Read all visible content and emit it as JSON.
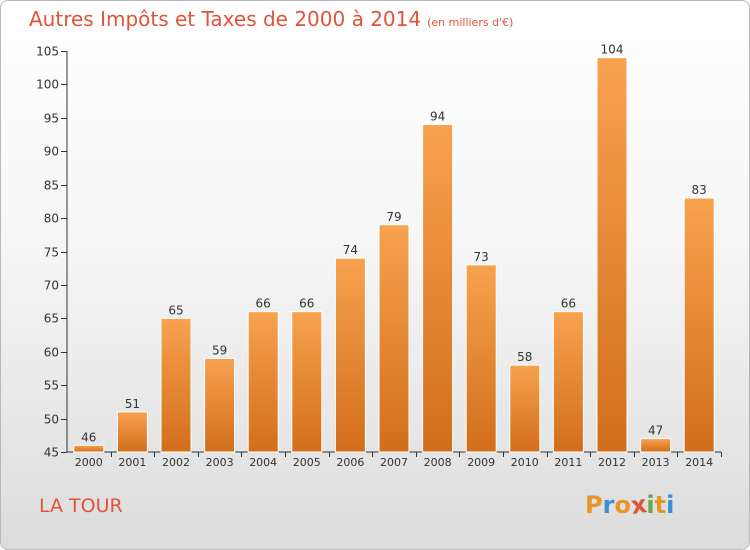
{
  "title": {
    "main": "Autres Impôts et Taxes de 2000 à 2014",
    "sub": "(en milliers d'€)"
  },
  "place_name": "LA TOUR",
  "logo": {
    "letters": [
      "P",
      "r",
      "o",
      "x",
      "i",
      "t",
      "i"
    ],
    "colors": [
      "#e8962a",
      "#3b8fd4",
      "#e8962a",
      "#e0543a",
      "#6aa84f",
      "#e8962a",
      "#3b8fd4"
    ]
  },
  "colors": {
    "accent": "#e0543a",
    "bar_light": "#f7a24f",
    "bar_dark": "#d26e1b"
  },
  "chart_data": {
    "type": "bar",
    "title": "Autres Impôts et Taxes de 2000 à 2014",
    "subtitle": "(en milliers d'€)",
    "categories": [
      "2000",
      "2001",
      "2002",
      "2003",
      "2004",
      "2005",
      "2006",
      "2007",
      "2008",
      "2009",
      "2010",
      "2011",
      "2012",
      "2013",
      "2014"
    ],
    "values": [
      46,
      51,
      65,
      59,
      66,
      66,
      74,
      79,
      94,
      73,
      58,
      66,
      104,
      47,
      83
    ],
    "ylim": [
      45,
      105
    ],
    "yticks": [
      45,
      50,
      55,
      60,
      65,
      70,
      75,
      80,
      85,
      90,
      95,
      100,
      105
    ],
    "xlabel": "",
    "ylabel": "",
    "grid": false,
    "data_labels": true
  }
}
